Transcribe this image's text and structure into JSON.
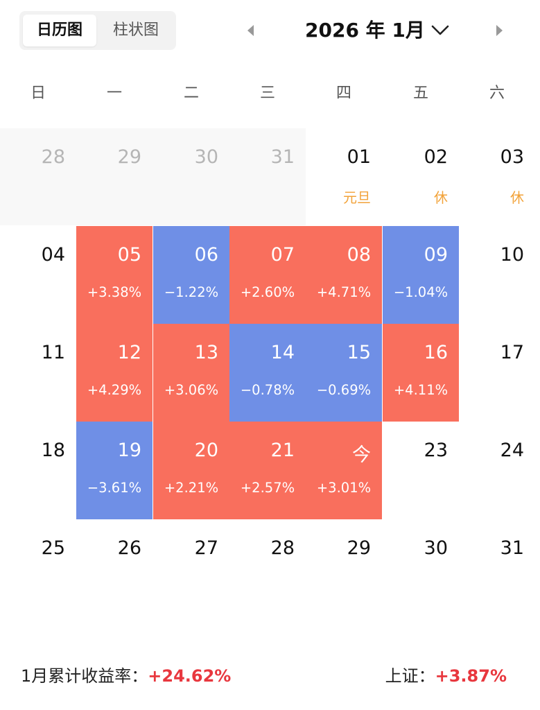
{
  "view_toggle": {
    "calendar_label": "日历图",
    "bar_label": "柱状图"
  },
  "header": {
    "month_title": "2026 年 1月"
  },
  "weekdays": [
    "日",
    "一",
    "二",
    "三",
    "四",
    "五",
    "六"
  ],
  "days": [
    {
      "label": "28",
      "outside": true
    },
    {
      "label": "29",
      "outside": true
    },
    {
      "label": "30",
      "outside": true
    },
    {
      "label": "31",
      "outside": true
    },
    {
      "label": "01",
      "holiday": "元旦"
    },
    {
      "label": "02",
      "holiday": "休"
    },
    {
      "label": "03",
      "holiday": "休"
    },
    {
      "label": "04"
    },
    {
      "label": "05",
      "pct": "+3.38%",
      "trend": "up"
    },
    {
      "label": "06",
      "pct": "−1.22%",
      "trend": "down"
    },
    {
      "label": "07",
      "pct": "+2.60%",
      "trend": "up"
    },
    {
      "label": "08",
      "pct": "+4.71%",
      "trend": "up"
    },
    {
      "label": "09",
      "pct": "−1.04%",
      "trend": "down"
    },
    {
      "label": "10"
    },
    {
      "label": "11"
    },
    {
      "label": "12",
      "pct": "+4.29%",
      "trend": "up"
    },
    {
      "label": "13",
      "pct": "+3.06%",
      "trend": "up"
    },
    {
      "label": "14",
      "pct": "−0.78%",
      "trend": "down"
    },
    {
      "label": "15",
      "pct": "−0.69%",
      "trend": "down"
    },
    {
      "label": "16",
      "pct": "+4.11%",
      "trend": "up"
    },
    {
      "label": "17"
    },
    {
      "label": "18"
    },
    {
      "label": "19",
      "pct": "−3.61%",
      "trend": "down"
    },
    {
      "label": "20",
      "pct": "+2.21%",
      "trend": "up"
    },
    {
      "label": "21",
      "pct": "+2.57%",
      "trend": "up"
    },
    {
      "label": "今",
      "pct": "+3.01%",
      "trend": "up"
    },
    {
      "label": "23"
    },
    {
      "label": "24"
    },
    {
      "label": "25"
    },
    {
      "label": "26"
    },
    {
      "label": "27"
    },
    {
      "label": "28"
    },
    {
      "label": "29"
    },
    {
      "label": "30"
    },
    {
      "label": "31"
    }
  ],
  "summary": {
    "month_label": "1月累计收益率：",
    "month_value": "+24.62%",
    "index_label": "上证：",
    "index_value": "+3.87%"
  },
  "colors": {
    "up": "#f96f5d",
    "down": "#6f8fe6",
    "holiday": "#f2a238",
    "summary_positive": "#e8373e"
  },
  "icons": {
    "prev": "triangle-left-icon",
    "next": "triangle-right-icon",
    "month_dropdown": "chevron-down-icon"
  }
}
